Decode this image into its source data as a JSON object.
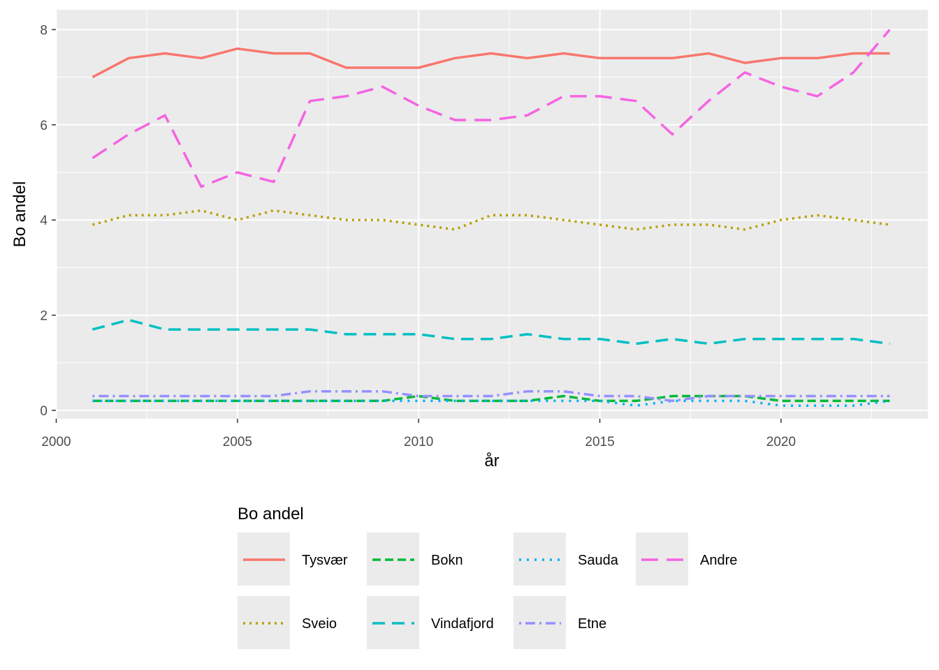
{
  "chart_data": {
    "type": "line",
    "xlabel": "år",
    "ylabel": "Bo andel",
    "xlim": [
      2000,
      2023
    ],
    "ylim": [
      0,
      8
    ],
    "x_ticks": [
      2000,
      2005,
      2010,
      2015,
      2020
    ],
    "y_ticks": [
      0,
      2,
      4,
      6,
      8
    ],
    "grid": true,
    "legend": {
      "title": "Bo andel",
      "position": "bottom"
    },
    "x": [
      2001,
      2002,
      2003,
      2004,
      2005,
      2006,
      2007,
      2008,
      2009,
      2010,
      2011,
      2012,
      2013,
      2014,
      2015,
      2016,
      2017,
      2018,
      2019,
      2020,
      2021,
      2022,
      2023
    ],
    "series": [
      {
        "name": "Tysvær",
        "color": "#F8766D",
        "dash": "solid",
        "values": [
          7.0,
          7.4,
          7.5,
          7.4,
          7.6,
          7.5,
          7.5,
          7.2,
          7.2,
          7.2,
          7.4,
          7.5,
          7.4,
          7.5,
          7.4,
          7.4,
          7.4,
          7.5,
          7.3,
          7.4,
          7.4,
          7.5,
          7.5
        ]
      },
      {
        "name": "Sveio",
        "color": "#B79F00",
        "dash": "dotted",
        "values": [
          3.9,
          4.1,
          4.1,
          4.2,
          4.0,
          4.2,
          4.1,
          4.0,
          4.0,
          3.9,
          3.8,
          4.1,
          4.1,
          4.0,
          3.9,
          3.8,
          3.9,
          3.9,
          3.8,
          4.0,
          4.1,
          4.0,
          3.9
        ]
      },
      {
        "name": "Bokn",
        "color": "#00BA38",
        "dash": "dashed",
        "values": [
          0.2,
          0.2,
          0.2,
          0.2,
          0.2,
          0.2,
          0.2,
          0.2,
          0.2,
          0.3,
          0.2,
          0.2,
          0.2,
          0.3,
          0.2,
          0.2,
          0.3,
          0.3,
          0.3,
          0.2,
          0.2,
          0.2,
          0.2
        ]
      },
      {
        "name": "Vindafjord",
        "color": "#00BFC4",
        "dash": "longdash",
        "values": [
          1.7,
          1.9,
          1.7,
          1.7,
          1.7,
          1.7,
          1.7,
          1.6,
          1.6,
          1.6,
          1.5,
          1.5,
          1.6,
          1.5,
          1.5,
          1.4,
          1.5,
          1.4,
          1.5,
          1.5,
          1.5,
          1.5,
          1.4
        ]
      },
      {
        "name": "Sauda",
        "color": "#00B0F6",
        "dash": "dotted2",
        "values": [
          0.2,
          0.2,
          0.2,
          0.2,
          0.2,
          0.2,
          0.2,
          0.2,
          0.2,
          0.2,
          0.2,
          0.2,
          0.2,
          0.2,
          0.2,
          0.1,
          0.2,
          0.2,
          0.2,
          0.1,
          0.1,
          0.1,
          0.2
        ]
      },
      {
        "name": "Etne",
        "color": "#9590FF",
        "dash": "dotdash",
        "values": [
          0.3,
          0.3,
          0.3,
          0.3,
          0.3,
          0.3,
          0.4,
          0.4,
          0.4,
          0.3,
          0.3,
          0.3,
          0.4,
          0.4,
          0.3,
          0.3,
          0.2,
          0.3,
          0.3,
          0.3,
          0.3,
          0.3,
          0.3
        ]
      },
      {
        "name": "Andre",
        "color": "#F564E3",
        "dash": "longdash2",
        "values": [
          5.3,
          5.8,
          6.2,
          4.7,
          5.0,
          4.8,
          6.5,
          6.6,
          6.8,
          6.4,
          6.1,
          6.1,
          6.2,
          6.6,
          6.6,
          6.5,
          5.8,
          6.5,
          7.1,
          6.8,
          6.6,
          7.1,
          8.0
        ]
      }
    ]
  }
}
